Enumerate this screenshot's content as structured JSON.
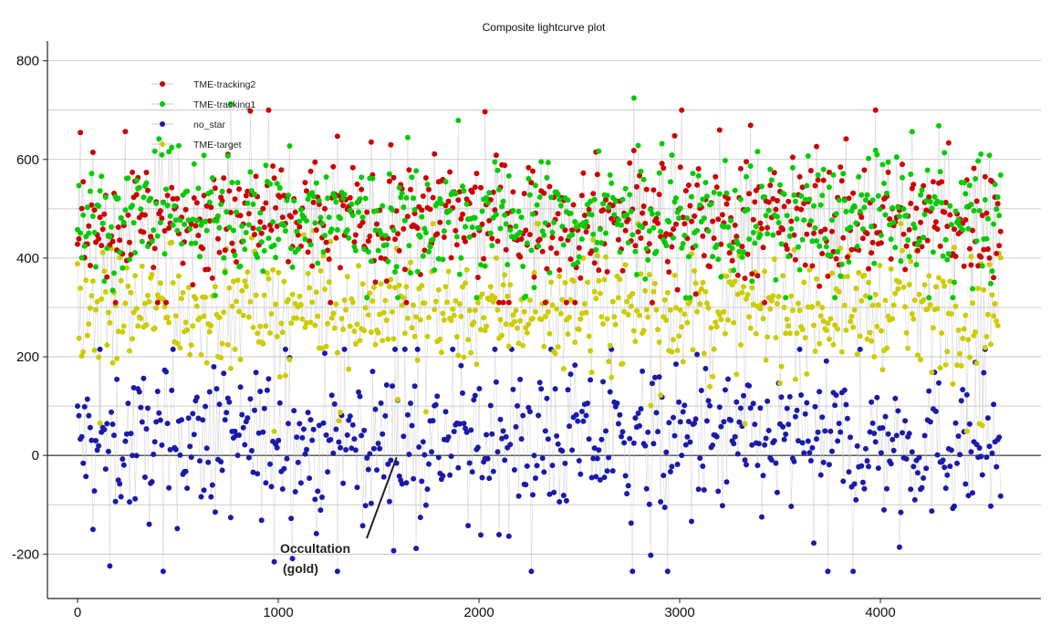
{
  "chart_data": {
    "type": "scatter",
    "title": "Composite lightcurve plot",
    "xlabel": "",
    "ylabel": "",
    "xlim": [
      -150,
      4800
    ],
    "ylim": [
      -290,
      840
    ],
    "x_ticks": [
      0,
      1000,
      2000,
      3000,
      4000
    ],
    "y_ticks": [
      -200,
      0,
      200,
      400,
      600,
      800
    ],
    "grid": "horizontal",
    "legend_position": "top-left",
    "connecting_lines": true,
    "n_frames": 4600,
    "series": [
      {
        "name": "TME-tracking2",
        "color": "#cc0000",
        "mean": 480,
        "spread": 60,
        "low": 310,
        "high": 700
      },
      {
        "name": "TME-tracking1",
        "color": "#00cc00",
        "mean": 480,
        "spread": 60,
        "low": 320,
        "high": 795
      },
      {
        "name": "no_star",
        "color": "#1a1aaa",
        "mean": 25,
        "spread": 75,
        "low": -235,
        "high": 215
      },
      {
        "name": "TME-target",
        "color": "#cccc00",
        "mean": 295,
        "spread": 55,
        "low": 30,
        "high": 470
      }
    ],
    "annotations": [
      {
        "line1": "Occultation",
        "line2": "(gold)",
        "x": 1590,
        "y": 0
      }
    ]
  }
}
